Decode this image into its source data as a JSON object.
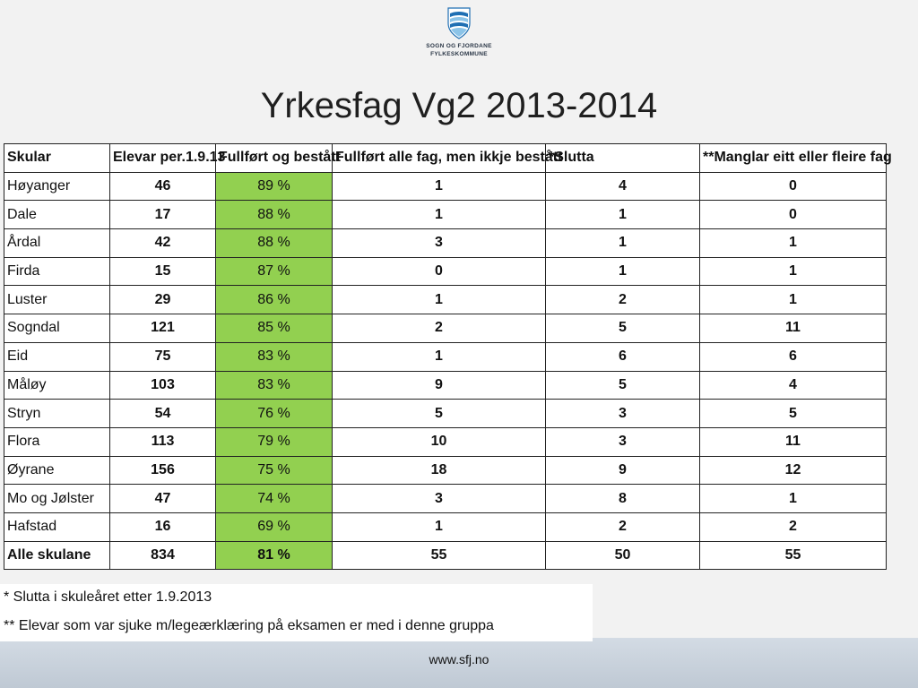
{
  "logo": {
    "line1": "SOGN OG FJORDANE",
    "line2": "FYLKESKOMMUNE",
    "colors": {
      "blue": "#1f6fb3",
      "light": "#8cc4e8"
    }
  },
  "title": "Yrkesfag Vg2 2013-2014",
  "table": {
    "headers": [
      "Skular",
      "Elevar per.1.9.13",
      "Fullført og bestått",
      "Fullført alle fag, men ikkje bestått",
      "*Slutta",
      "**Manglar eitt eller fleire fag"
    ],
    "rows": [
      [
        "Høyanger",
        "46",
        "89 %",
        "1",
        "4",
        "0"
      ],
      [
        "Dale",
        "17",
        "88 %",
        "1",
        "1",
        "0"
      ],
      [
        "Årdal",
        "42",
        "88 %",
        "3",
        "1",
        "1"
      ],
      [
        "Firda",
        "15",
        "87 %",
        "0",
        "1",
        "1"
      ],
      [
        "Luster",
        "29",
        "86 %",
        "1",
        "2",
        "1"
      ],
      [
        "Sogndal",
        "121",
        "85 %",
        "2",
        "5",
        "11"
      ],
      [
        "Eid",
        "75",
        "83 %",
        "1",
        "6",
        "6"
      ],
      [
        "Måløy",
        "103",
        "83 %",
        "9",
        "5",
        "4"
      ],
      [
        "Stryn",
        "54",
        "76 %",
        "5",
        "3",
        "5"
      ],
      [
        "Flora",
        "113",
        "79 %",
        "10",
        "3",
        "11"
      ],
      [
        "Øyrane",
        "156",
        "75 %",
        "18",
        "9",
        "12"
      ],
      [
        "Mo og Jølster",
        "47",
        "74 %",
        "3",
        "8",
        "1"
      ],
      [
        "Hafstad",
        "16",
        "69 %",
        "1",
        "2",
        "2"
      ]
    ],
    "total": [
      "Alle skulane",
      "834",
      "81 %",
      "55",
      "50",
      "55"
    ],
    "highlight_color": "#92d050"
  },
  "notes": {
    "note1": "* Slutta i skuleåret etter 1.9.2013",
    "note2": "** Elevar som var sjuke m/legeærklæring på eksamen er med i denne gruppa"
  },
  "footer": {
    "url": "www.sfj.no"
  }
}
